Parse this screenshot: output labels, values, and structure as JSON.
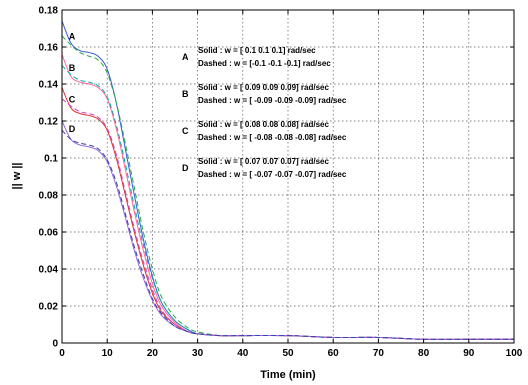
{
  "chart_data": {
    "type": "line",
    "title": "",
    "xlabel": "Time (min)",
    "ylabel": "|| w ||",
    "xlim": [
      0,
      100
    ],
    "ylim": [
      0,
      0.18
    ],
    "xticks": [
      0,
      10,
      20,
      30,
      40,
      50,
      60,
      70,
      80,
      90,
      100
    ],
    "yticks": [
      0,
      0.02,
      0.04,
      0.06,
      0.08,
      0.1,
      0.12,
      0.14,
      0.16,
      0.18
    ],
    "xtick_labels": [
      "0",
      "10",
      "20",
      "30",
      "40",
      "50",
      "60",
      "70",
      "80",
      "90",
      "100"
    ],
    "ytick_labels": [
      "0",
      "0.02",
      "0.04",
      "0.06",
      "0.08",
      "0.1",
      "0.12",
      "0.14",
      "0.16",
      "0.18"
    ],
    "grid": true,
    "annotations": [
      {
        "letter": "A",
        "solid": "Solid    : w = [ 0.1   0.1    0.1] rad/sec",
        "dashed": "Dashed : w = [-0.1  -0.1  -0.1] rad/sec"
      },
      {
        "letter": "B",
        "solid": "Solid    : w = [ 0.09   0.09    0.09] rad/sec",
        "dashed": "Dashed : w = [ -0.09  -0.09   -0.09] rad/sec"
      },
      {
        "letter": "C",
        "solid": "Solid    : w = [ 0.08   0.08    0.08] rad/sec",
        "dashed": "Dashed : w = [ -0.08  -0.08   -0.08] rad/sec"
      },
      {
        "letter": "D",
        "solid": "Solid    : w = [ 0.07   0.07    0.07] rad/sec",
        "dashed": "Dashed : w = [ -0.07  -0.07   -0.07] rad/sec"
      }
    ],
    "series": [
      {
        "letter": "A",
        "style": "solid",
        "color": "#3b5bd6",
        "x": [
          0,
          2,
          4,
          6,
          8,
          10,
          12,
          14,
          16,
          18,
          20,
          22,
          25,
          28,
          30,
          35,
          40,
          50,
          60,
          70,
          80,
          90,
          100
        ],
        "y": [
          0.174,
          0.162,
          0.158,
          0.157,
          0.155,
          0.148,
          0.13,
          0.105,
          0.08,
          0.056,
          0.036,
          0.022,
          0.012,
          0.007,
          0.005,
          0.004,
          0.004,
          0.004,
          0.003,
          0.003,
          0.002,
          0.002,
          0.002
        ]
      },
      {
        "letter": "A",
        "style": "dashed",
        "color": "#22aa44",
        "x": [
          0,
          2,
          4,
          6,
          8,
          10,
          12,
          14,
          16,
          18,
          20,
          22,
          25,
          28,
          30,
          35,
          40,
          50,
          60,
          70,
          80,
          90,
          100
        ],
        "y": [
          0.166,
          0.161,
          0.157,
          0.155,
          0.153,
          0.146,
          0.13,
          0.108,
          0.084,
          0.06,
          0.04,
          0.025,
          0.014,
          0.008,
          0.006,
          0.004,
          0.004,
          0.004,
          0.003,
          0.003,
          0.002,
          0.002,
          0.002
        ]
      },
      {
        "letter": "B",
        "style": "solid",
        "color": "#ff6699",
        "x": [
          0,
          2,
          4,
          6,
          8,
          10,
          12,
          14,
          16,
          18,
          20,
          22,
          25,
          28,
          30,
          35,
          40,
          50,
          60,
          70,
          80,
          90,
          100
        ],
        "y": [
          0.156,
          0.144,
          0.141,
          0.14,
          0.138,
          0.132,
          0.116,
          0.094,
          0.071,
          0.05,
          0.032,
          0.02,
          0.011,
          0.006,
          0.005,
          0.004,
          0.004,
          0.004,
          0.003,
          0.003,
          0.002,
          0.002,
          0.002
        ]
      },
      {
        "letter": "B",
        "style": "dashed",
        "color": "#00aaaa",
        "x": [
          0,
          2,
          4,
          6,
          8,
          10,
          12,
          14,
          16,
          18,
          20,
          22,
          25,
          28,
          30,
          35,
          40,
          50,
          60,
          70,
          80,
          90,
          100
        ],
        "y": [
          0.15,
          0.145,
          0.142,
          0.141,
          0.139,
          0.133,
          0.118,
          0.097,
          0.074,
          0.053,
          0.035,
          0.022,
          0.012,
          0.007,
          0.005,
          0.004,
          0.004,
          0.004,
          0.003,
          0.003,
          0.002,
          0.002,
          0.002
        ]
      },
      {
        "letter": "C",
        "style": "solid",
        "color": "#dd3333",
        "x": [
          0,
          2,
          4,
          6,
          8,
          10,
          12,
          14,
          16,
          18,
          20,
          22,
          25,
          28,
          30,
          35,
          40,
          50,
          60,
          70,
          80,
          90,
          100
        ],
        "y": [
          0.138,
          0.127,
          0.124,
          0.123,
          0.121,
          0.115,
          0.1,
          0.08,
          0.06,
          0.042,
          0.027,
          0.017,
          0.01,
          0.006,
          0.005,
          0.004,
          0.004,
          0.004,
          0.003,
          0.003,
          0.002,
          0.002,
          0.002
        ]
      },
      {
        "letter": "C",
        "style": "dashed",
        "color": "#cc44cc",
        "x": [
          0,
          2,
          4,
          6,
          8,
          10,
          12,
          14,
          16,
          18,
          20,
          22,
          25,
          28,
          30,
          35,
          40,
          50,
          60,
          70,
          80,
          90,
          100
        ],
        "y": [
          0.132,
          0.128,
          0.125,
          0.124,
          0.122,
          0.116,
          0.102,
          0.082,
          0.062,
          0.044,
          0.029,
          0.018,
          0.01,
          0.006,
          0.005,
          0.004,
          0.004,
          0.004,
          0.003,
          0.003,
          0.002,
          0.002,
          0.002
        ]
      },
      {
        "letter": "D",
        "style": "solid",
        "color": "#9966dd",
        "x": [
          0,
          2,
          4,
          6,
          8,
          10,
          12,
          14,
          16,
          18,
          20,
          22,
          25,
          28,
          30,
          35,
          40,
          50,
          60,
          70,
          80,
          90,
          100
        ],
        "y": [
          0.12,
          0.11,
          0.107,
          0.106,
          0.104,
          0.098,
          0.085,
          0.068,
          0.05,
          0.035,
          0.023,
          0.015,
          0.009,
          0.006,
          0.005,
          0.004,
          0.004,
          0.004,
          0.003,
          0.003,
          0.002,
          0.002,
          0.002
        ]
      },
      {
        "letter": "D",
        "style": "dashed",
        "color": "#3344aa",
        "x": [
          0,
          2,
          4,
          6,
          8,
          10,
          12,
          14,
          16,
          18,
          20,
          22,
          25,
          28,
          30,
          35,
          40,
          50,
          60,
          70,
          80,
          90,
          100
        ],
        "y": [
          0.115,
          0.11,
          0.108,
          0.107,
          0.105,
          0.099,
          0.087,
          0.07,
          0.052,
          0.037,
          0.024,
          0.016,
          0.009,
          0.006,
          0.005,
          0.004,
          0.004,
          0.004,
          0.003,
          0.003,
          0.002,
          0.002,
          0.002
        ]
      }
    ],
    "curve_labels": [
      {
        "letter": "A",
        "x": 1.5,
        "y": 0.164
      },
      {
        "letter": "B",
        "x": 1.5,
        "y": 0.147
      },
      {
        "letter": "C",
        "x": 1.5,
        "y": 0.13
      },
      {
        "letter": "D",
        "x": 1.5,
        "y": 0.114
      }
    ]
  }
}
